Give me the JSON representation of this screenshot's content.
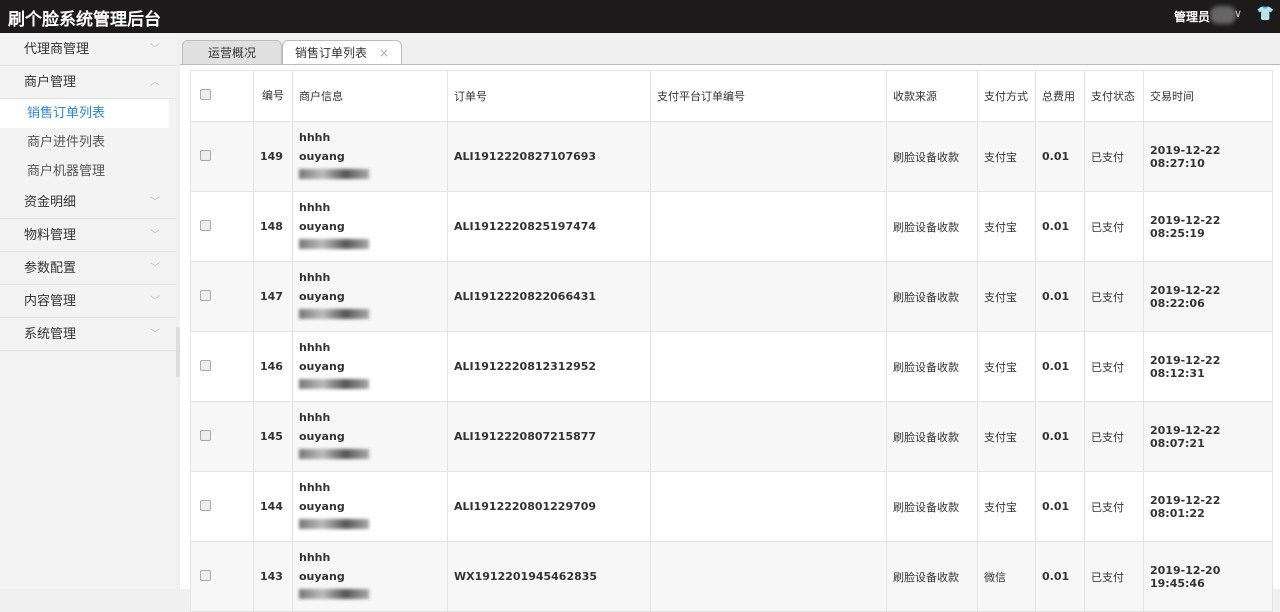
{
  "header": {
    "title": "刷个脸系统管理后台",
    "user_label": "管理员"
  },
  "sidebar": {
    "items": [
      {
        "label": "代理商管理",
        "expanded": false
      },
      {
        "label": "商户管理",
        "expanded": true,
        "children": [
          {
            "label": "销售订单列表",
            "active": true
          },
          {
            "label": "商户进件列表"
          },
          {
            "label": "商户机器管理"
          }
        ]
      },
      {
        "label": "资金明细",
        "expanded": false
      },
      {
        "label": "物料管理",
        "expanded": false
      },
      {
        "label": "参数配置",
        "expanded": false
      },
      {
        "label": "内容管理",
        "expanded": false
      },
      {
        "label": "系统管理",
        "expanded": false
      }
    ]
  },
  "tabs": [
    {
      "label": "运营概况"
    },
    {
      "label": "销售订单列表",
      "active": true,
      "close": "×"
    }
  ],
  "table": {
    "columns": [
      "编号",
      "商户信息",
      "订单号",
      "支付平台订单编号",
      "收款来源",
      "支付方式",
      "总费用",
      "支付状态",
      "交易时间"
    ],
    "rows": [
      {
        "id": "149",
        "name1": "hhhh",
        "name2": "ouyang",
        "order": "ALI1912220827107693",
        "platform_order": "",
        "source": "刷脸设备收款",
        "method": "支付宝",
        "fee": "0.01",
        "status": "已支付",
        "time": "2019-12-22 08:27:10"
      },
      {
        "id": "148",
        "name1": "hhhh",
        "name2": "ouyang",
        "order": "ALI1912220825197474",
        "platform_order": "",
        "source": "刷脸设备收款",
        "method": "支付宝",
        "fee": "0.01",
        "status": "已支付",
        "time": "2019-12-22 08:25:19"
      },
      {
        "id": "147",
        "name1": "hhhh",
        "name2": "ouyang",
        "order": "ALI1912220822066431",
        "platform_order": "",
        "source": "刷脸设备收款",
        "method": "支付宝",
        "fee": "0.01",
        "status": "已支付",
        "time": "2019-12-22 08:22:06"
      },
      {
        "id": "146",
        "name1": "hhhh",
        "name2": "ouyang",
        "order": "ALI1912220812312952",
        "platform_order": "",
        "source": "刷脸设备收款",
        "method": "支付宝",
        "fee": "0.01",
        "status": "已支付",
        "time": "2019-12-22 08:12:31"
      },
      {
        "id": "145",
        "name1": "hhhh",
        "name2": "ouyang",
        "order": "ALI1912220807215877",
        "platform_order": "",
        "source": "刷脸设备收款",
        "method": "支付宝",
        "fee": "0.01",
        "status": "已支付",
        "time": "2019-12-22 08:07:21"
      },
      {
        "id": "144",
        "name1": "hhhh",
        "name2": "ouyang",
        "order": "ALI1912220801229709",
        "platform_order": "",
        "source": "刷脸设备收款",
        "method": "支付宝",
        "fee": "0.01",
        "status": "已支付",
        "time": "2019-12-22 08:01:22"
      },
      {
        "id": "143",
        "name1": "hhhh",
        "name2": "ouyang",
        "order": "WX1912201945462835",
        "platform_order": "",
        "source": "刷脸设备收款",
        "method": "微信",
        "fee": "0.01",
        "status": "已支付",
        "time": "2019-12-20 19:45:46"
      }
    ]
  }
}
